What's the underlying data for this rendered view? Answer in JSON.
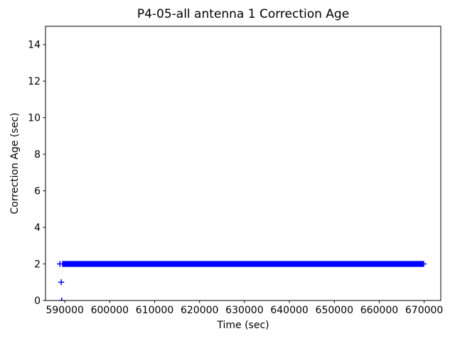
{
  "figure": {
    "background": "#ffffff",
    "text_color": "#000000"
  },
  "chart_data": {
    "type": "scatter",
    "title": "P4-05-all antenna 1 Correction Age",
    "xlabel": "Time (sec)",
    "ylabel": "Correction Age (sec)",
    "marker": "+",
    "marker_color": "#0000ff",
    "axis_color": "#000000",
    "grid": false,
    "xlim": [
      585700,
      673700
    ],
    "ylim": [
      0,
      15
    ],
    "xticks": [
      590000,
      600000,
      610000,
      620000,
      630000,
      640000,
      650000,
      660000,
      670000
    ],
    "yticks": [
      0,
      2,
      4,
      6,
      8,
      10,
      12,
      14
    ],
    "series": [
      {
        "name": "antenna-1-correction-age",
        "dense_band": {
          "y": 2,
          "x_start": 589400,
          "x_end": 669800
        },
        "points": [
          {
            "x": 588900,
            "y": 2
          },
          {
            "x": 589200,
            "y": 1
          },
          {
            "x": 589300,
            "y": 0
          },
          {
            "x": 669900,
            "y": 2
          }
        ]
      }
    ]
  }
}
